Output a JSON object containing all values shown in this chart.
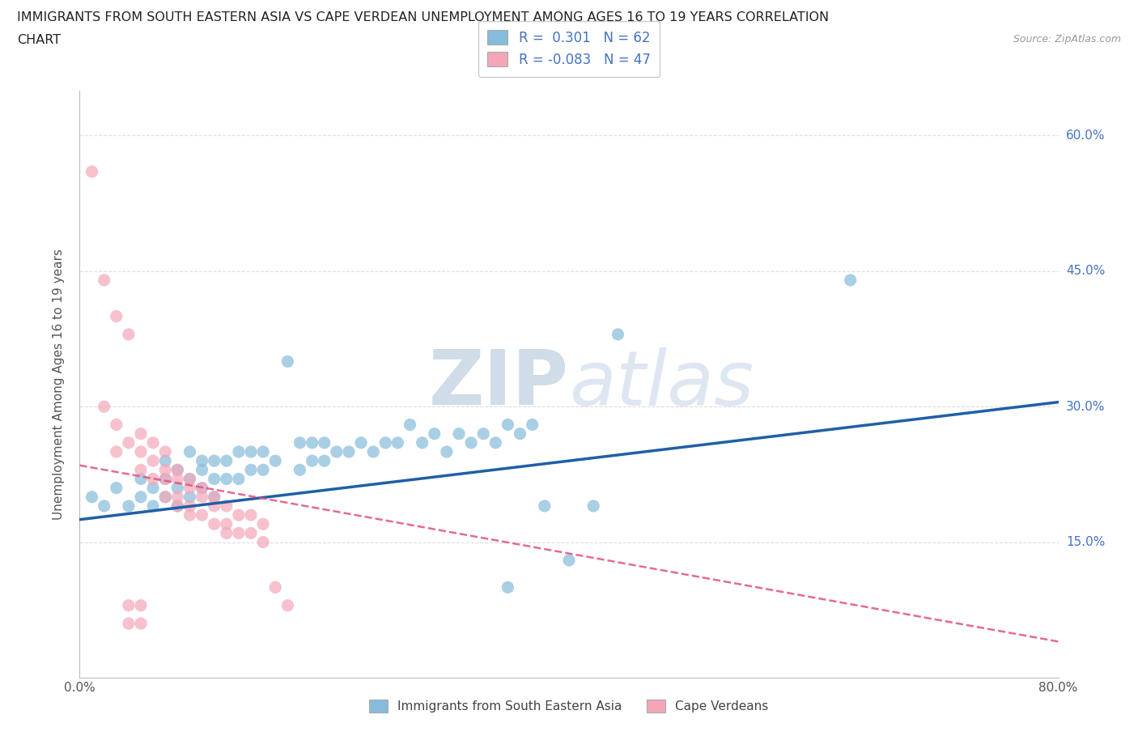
{
  "title_line1": "IMMIGRANTS FROM SOUTH EASTERN ASIA VS CAPE VERDEAN UNEMPLOYMENT AMONG AGES 16 TO 19 YEARS CORRELATION",
  "title_line2": "CHART",
  "source_text": "Source: ZipAtlas.com",
  "ylabel": "Unemployment Among Ages 16 to 19 years",
  "xlim": [
    0.0,
    0.8
  ],
  "ylim": [
    0.0,
    0.65
  ],
  "ytick_positions": [
    0.15,
    0.3,
    0.45,
    0.6
  ],
  "ytick_labels": [
    "15.0%",
    "30.0%",
    "45.0%",
    "60.0%"
  ],
  "watermark_zip": "ZIP",
  "watermark_atlas": "atlas",
  "legend_r1": "R =  0.301   N = 62",
  "legend_r2": "R = -0.083   N = 47",
  "blue_color": "#85BBDB",
  "pink_color": "#F4A6B8",
  "blue_line_color": "#1F5FA6",
  "pink_line_color": "#E05080",
  "blue_scatter": [
    [
      0.01,
      0.2
    ],
    [
      0.02,
      0.19
    ],
    [
      0.03,
      0.21
    ],
    [
      0.04,
      0.19
    ],
    [
      0.05,
      0.2
    ],
    [
      0.05,
      0.22
    ],
    [
      0.06,
      0.19
    ],
    [
      0.06,
      0.21
    ],
    [
      0.07,
      0.2
    ],
    [
      0.07,
      0.22
    ],
    [
      0.07,
      0.24
    ],
    [
      0.08,
      0.19
    ],
    [
      0.08,
      0.21
    ],
    [
      0.08,
      0.23
    ],
    [
      0.09,
      0.2
    ],
    [
      0.09,
      0.22
    ],
    [
      0.09,
      0.25
    ],
    [
      0.1,
      0.21
    ],
    [
      0.1,
      0.23
    ],
    [
      0.1,
      0.24
    ],
    [
      0.11,
      0.2
    ],
    [
      0.11,
      0.22
    ],
    [
      0.11,
      0.24
    ],
    [
      0.12,
      0.22
    ],
    [
      0.12,
      0.24
    ],
    [
      0.13,
      0.22
    ],
    [
      0.13,
      0.25
    ],
    [
      0.14,
      0.23
    ],
    [
      0.14,
      0.25
    ],
    [
      0.15,
      0.23
    ],
    [
      0.15,
      0.25
    ],
    [
      0.16,
      0.24
    ],
    [
      0.17,
      0.35
    ],
    [
      0.18,
      0.23
    ],
    [
      0.18,
      0.26
    ],
    [
      0.19,
      0.24
    ],
    [
      0.19,
      0.26
    ],
    [
      0.2,
      0.24
    ],
    [
      0.2,
      0.26
    ],
    [
      0.21,
      0.25
    ],
    [
      0.22,
      0.25
    ],
    [
      0.23,
      0.26
    ],
    [
      0.24,
      0.25
    ],
    [
      0.25,
      0.26
    ],
    [
      0.26,
      0.26
    ],
    [
      0.27,
      0.28
    ],
    [
      0.28,
      0.26
    ],
    [
      0.29,
      0.27
    ],
    [
      0.3,
      0.25
    ],
    [
      0.31,
      0.27
    ],
    [
      0.32,
      0.26
    ],
    [
      0.33,
      0.27
    ],
    [
      0.34,
      0.26
    ],
    [
      0.35,
      0.28
    ],
    [
      0.36,
      0.27
    ],
    [
      0.37,
      0.28
    ],
    [
      0.38,
      0.19
    ],
    [
      0.4,
      0.13
    ],
    [
      0.42,
      0.19
    ],
    [
      0.44,
      0.38
    ],
    [
      0.63,
      0.44
    ],
    [
      0.35,
      0.1
    ]
  ],
  "pink_scatter": [
    [
      0.01,
      0.56
    ],
    [
      0.02,
      0.44
    ],
    [
      0.03,
      0.4
    ],
    [
      0.04,
      0.38
    ],
    [
      0.02,
      0.3
    ],
    [
      0.03,
      0.28
    ],
    [
      0.03,
      0.25
    ],
    [
      0.04,
      0.26
    ],
    [
      0.05,
      0.27
    ],
    [
      0.05,
      0.25
    ],
    [
      0.05,
      0.23
    ],
    [
      0.06,
      0.26
    ],
    [
      0.06,
      0.24
    ],
    [
      0.06,
      0.22
    ],
    [
      0.07,
      0.25
    ],
    [
      0.07,
      0.23
    ],
    [
      0.07,
      0.22
    ],
    [
      0.07,
      0.2
    ],
    [
      0.08,
      0.23
    ],
    [
      0.08,
      0.22
    ],
    [
      0.08,
      0.2
    ],
    [
      0.08,
      0.19
    ],
    [
      0.09,
      0.22
    ],
    [
      0.09,
      0.21
    ],
    [
      0.09,
      0.19
    ],
    [
      0.09,
      0.18
    ],
    [
      0.1,
      0.21
    ],
    [
      0.1,
      0.2
    ],
    [
      0.1,
      0.18
    ],
    [
      0.11,
      0.2
    ],
    [
      0.11,
      0.19
    ],
    [
      0.11,
      0.17
    ],
    [
      0.12,
      0.19
    ],
    [
      0.12,
      0.17
    ],
    [
      0.12,
      0.16
    ],
    [
      0.13,
      0.18
    ],
    [
      0.13,
      0.16
    ],
    [
      0.14,
      0.18
    ],
    [
      0.14,
      0.16
    ],
    [
      0.15,
      0.17
    ],
    [
      0.15,
      0.15
    ],
    [
      0.16,
      0.1
    ],
    [
      0.04,
      0.08
    ],
    [
      0.05,
      0.08
    ],
    [
      0.17,
      0.08
    ],
    [
      0.04,
      0.06
    ],
    [
      0.05,
      0.06
    ]
  ],
  "blue_trend": {
    "x_start": 0.0,
    "y_start": 0.175,
    "x_end": 0.8,
    "y_end": 0.305
  },
  "pink_trend": {
    "x_start": 0.0,
    "y_start": 0.235,
    "x_end": 0.8,
    "y_end": 0.04
  },
  "background_color": "#FFFFFF",
  "grid_color": "#DDDDDD"
}
